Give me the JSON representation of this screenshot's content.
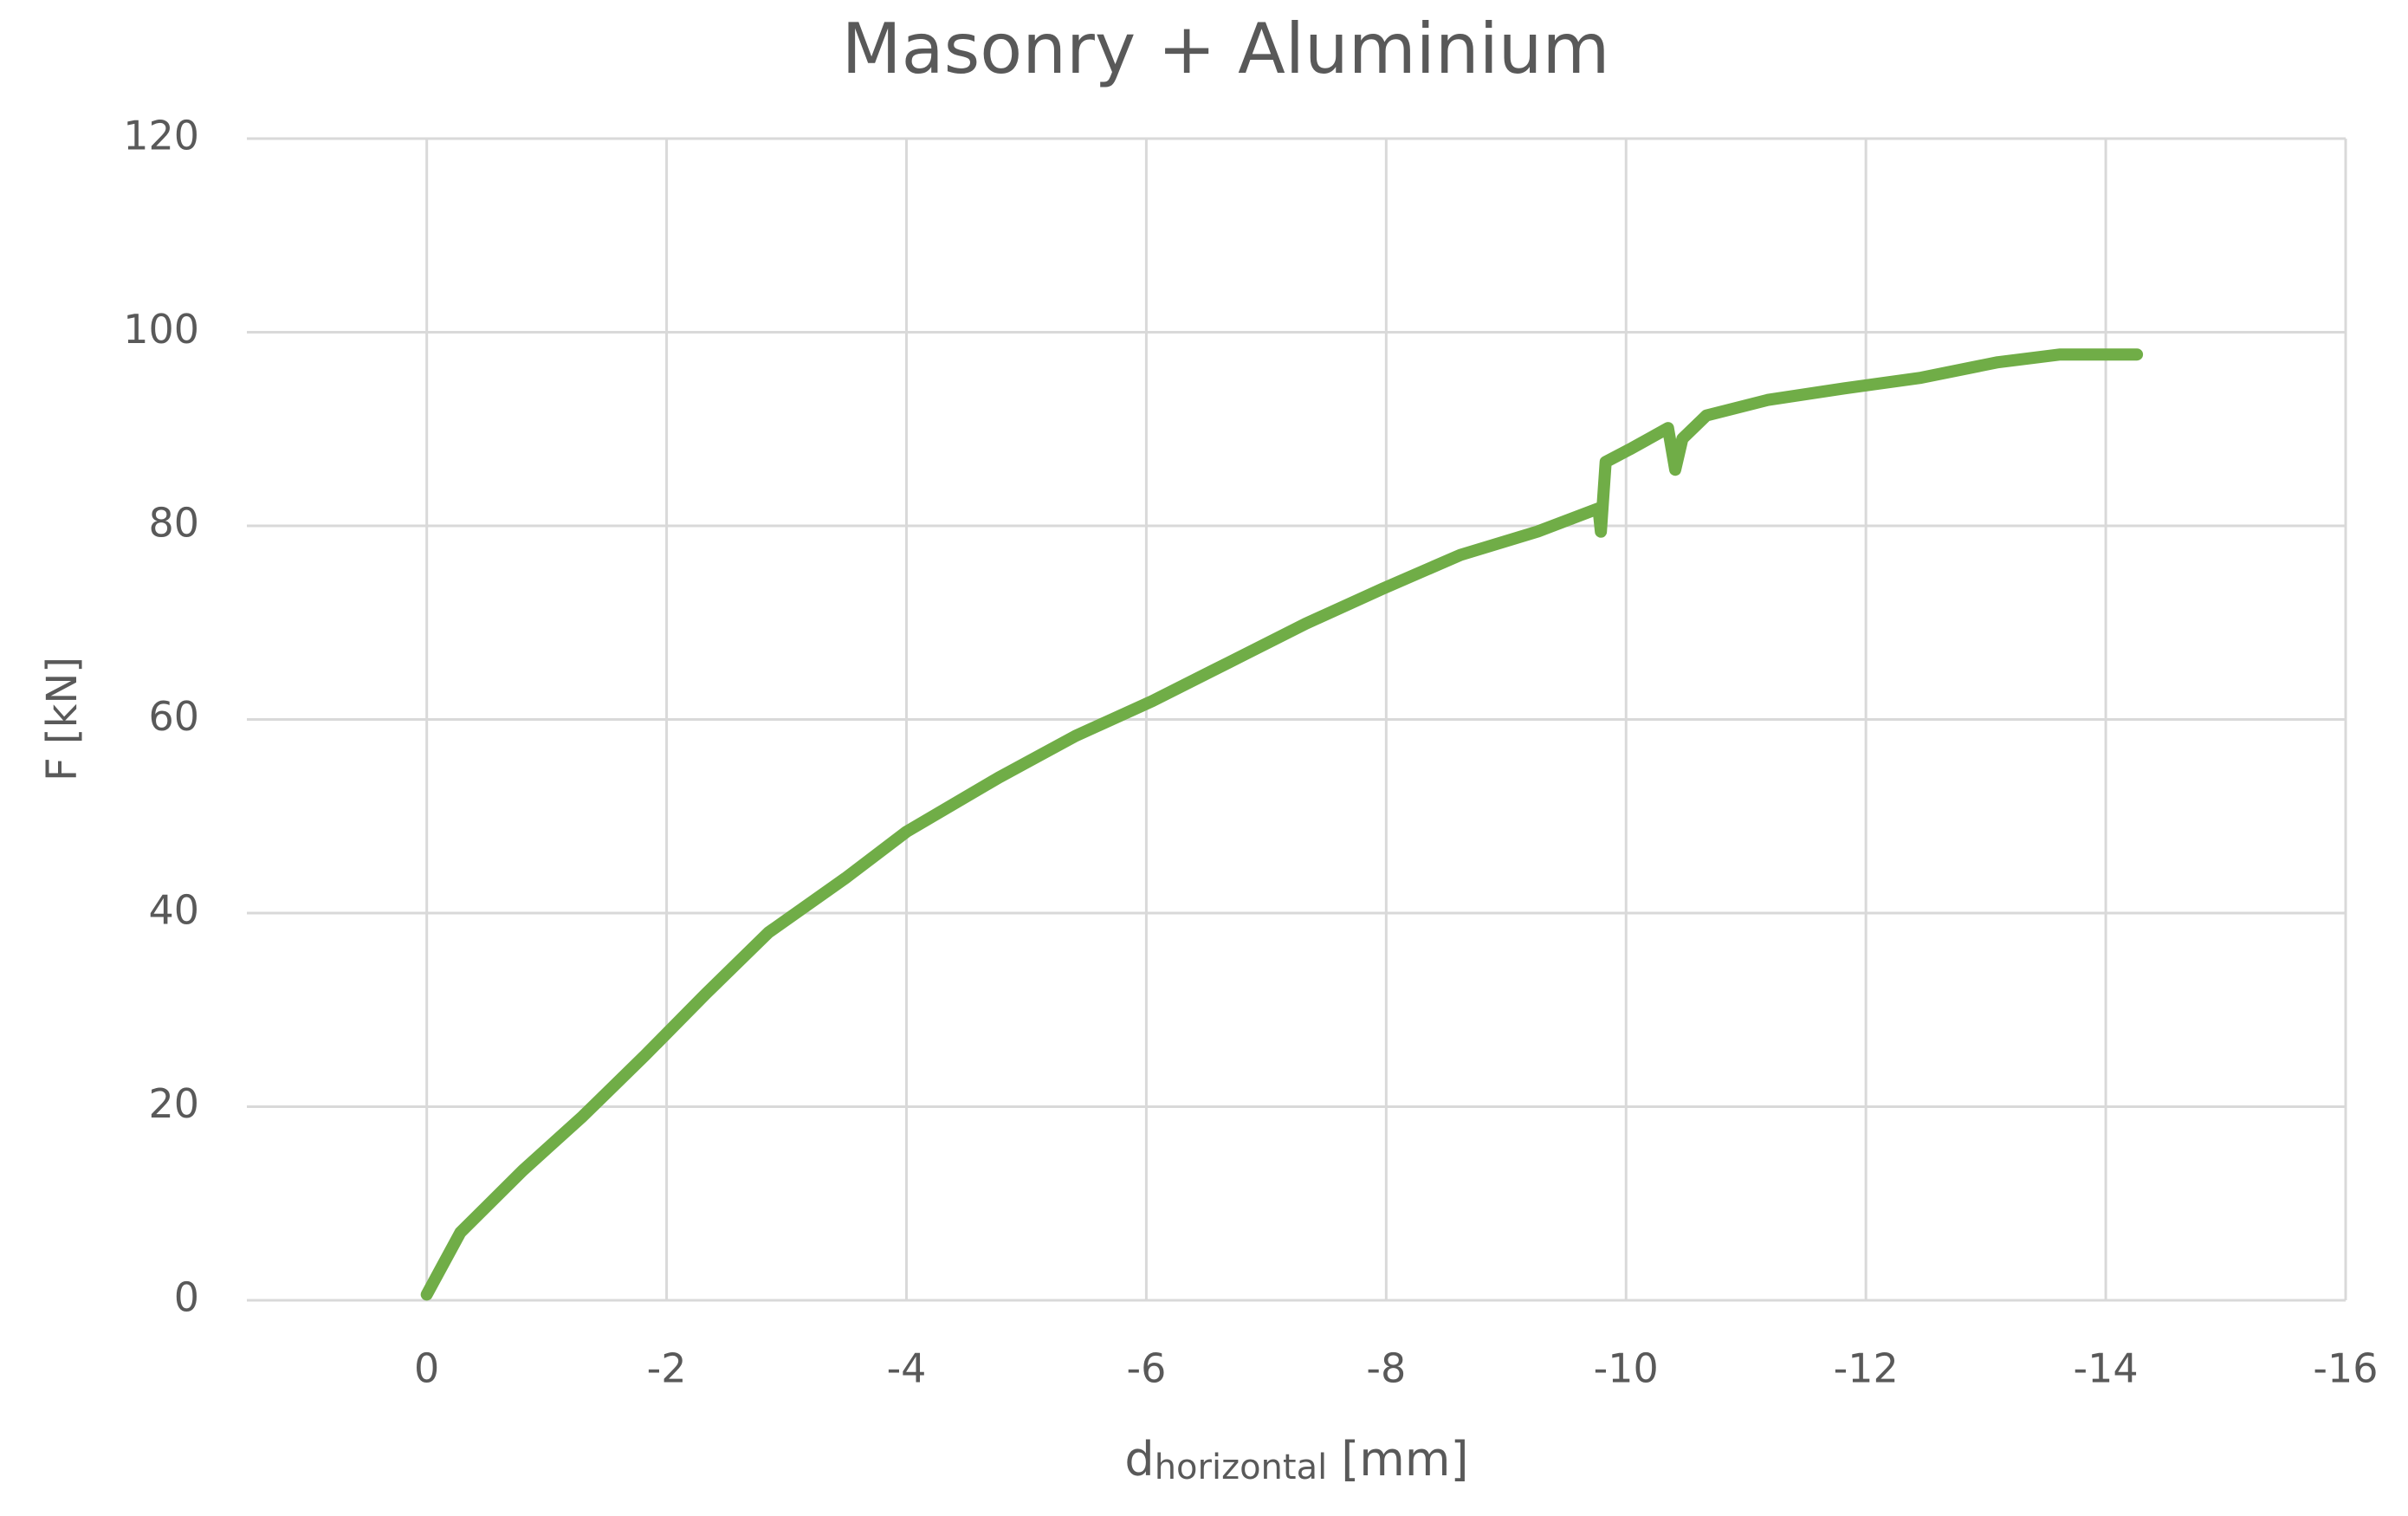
{
  "chart_data": {
    "type": "line",
    "title": "Masonry + Aluminium",
    "x_label": [
      "d",
      "horizontal",
      "[mm]"
    ],
    "y_label": "F [kN]",
    "xlim": [
      1.5,
      -16
    ],
    "xticks": [
      0,
      -2,
      -4,
      -6,
      -8,
      -10,
      -12,
      -14,
      -16
    ],
    "ylim": [
      0,
      120
    ],
    "yticks": [
      0,
      20,
      40,
      60,
      80,
      100,
      120
    ],
    "grid": true,
    "series": [
      {
        "color": "#70ad47",
        "x": [
          0,
          -0.28,
          -0.8,
          -1.3,
          -1.82,
          -2.33,
          -2.85,
          -3.49,
          -4,
          -4.77,
          -5.41,
          -6.05,
          -6.69,
          -7.33,
          -7.97,
          -8.62,
          -9.26,
          -9.77,
          -9.79,
          -9.83,
          -10.03,
          -10.35,
          -10.41,
          -10.47,
          -10.67,
          -11.18,
          -11.82,
          -12.46,
          -13.1,
          -13.62,
          -13.94,
          -14.26
        ],
        "values": [
          0.6,
          7,
          13.4,
          19,
          25.3,
          31.7,
          38,
          43.6,
          48.4,
          54,
          58.3,
          61.9,
          65.9,
          69.9,
          73.5,
          77,
          79.4,
          81.8,
          79.4,
          86.6,
          87.9,
          90.1,
          85.8,
          89,
          91.4,
          93,
          94.2,
          95.3,
          96.9,
          97.7,
          97.7,
          97.7
        ]
      }
    ]
  }
}
